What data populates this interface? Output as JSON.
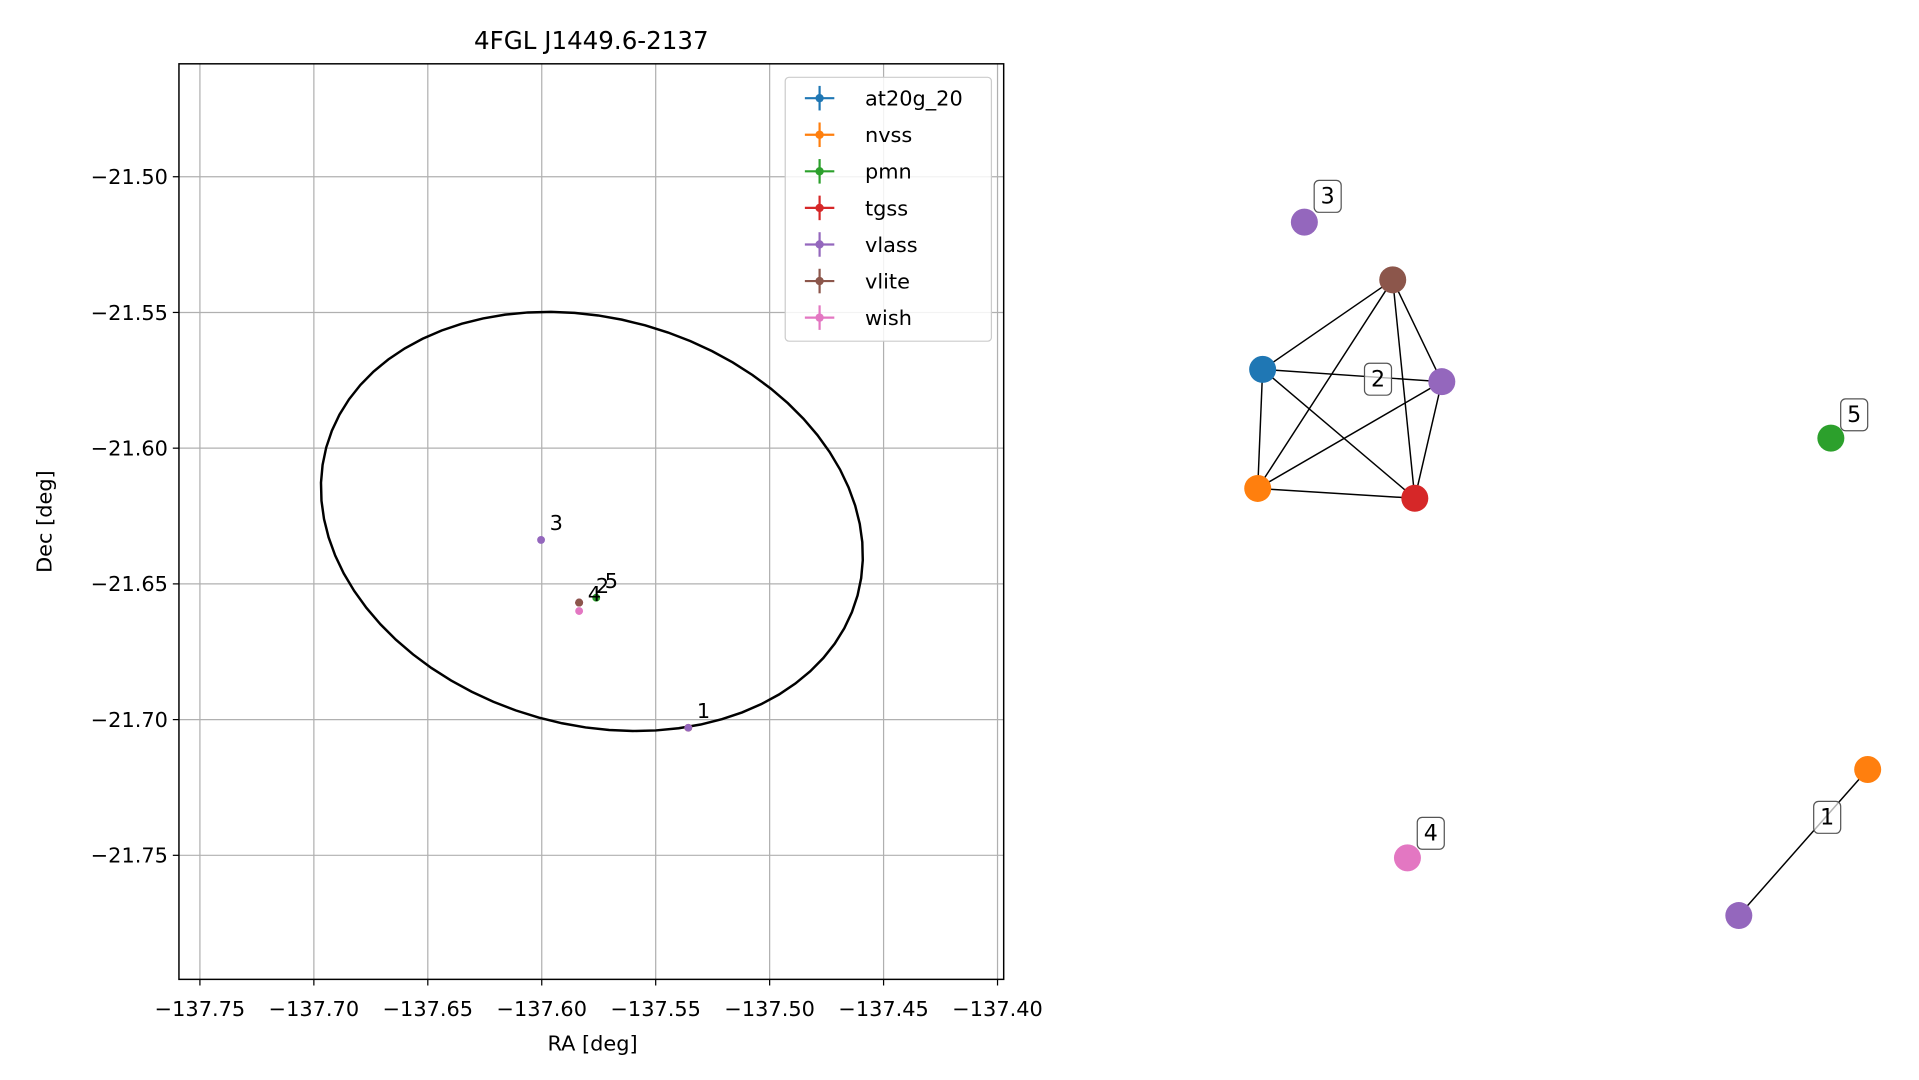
{
  "chart_data": {
    "type": "scatter",
    "title": "4FGL J1449.6-2137",
    "xlabel": "RA [deg]",
    "ylabel": "Dec [deg]",
    "xlim": [
      -137.7592,
      -137.3973
    ],
    "ylim": [
      -21.7957,
      -21.4584
    ],
    "xticks": [
      {
        "value": -137.75,
        "label": "−137.75"
      },
      {
        "value": -137.7,
        "label": "−137.70"
      },
      {
        "value": -137.65,
        "label": "−137.65"
      },
      {
        "value": -137.6,
        "label": "−137.60"
      },
      {
        "value": -137.55,
        "label": "−137.55"
      },
      {
        "value": -137.5,
        "label": "−137.50"
      },
      {
        "value": -137.45,
        "label": "−137.45"
      },
      {
        "value": -137.4,
        "label": "−137.40"
      }
    ],
    "yticks": [
      {
        "value": -21.5,
        "label": "−21.50"
      },
      {
        "value": -21.55,
        "label": "−21.55"
      },
      {
        "value": -21.6,
        "label": "−21.60"
      },
      {
        "value": -21.65,
        "label": "−21.65"
      },
      {
        "value": -21.7,
        "label": "−21.70"
      },
      {
        "value": -21.75,
        "label": "−21.75"
      }
    ],
    "grid": true,
    "legend": "upper right",
    "series": [
      {
        "name": "at20g_20",
        "color": "#1f77b4",
        "x": [
          -137.5836
        ],
        "y": [
          -21.6569
        ]
      },
      {
        "name": "nvss",
        "color": "#ff7f0e",
        "x": [
          -137.5836,
          -137.5357
        ],
        "y": [
          -21.6569,
          -21.703
        ]
      },
      {
        "name": "pmn",
        "color": "#2ca02c",
        "x": [
          -137.5761
        ],
        "y": [
          -21.6551
        ]
      },
      {
        "name": "tgss",
        "color": "#d62728",
        "x": [
          -137.5836
        ],
        "y": [
          -21.6569
        ]
      },
      {
        "name": "vlass",
        "color": "#9467bd",
        "x": [
          -137.5836,
          -137.6003,
          -137.5357
        ],
        "y": [
          -21.6569,
          -21.6338,
          -21.703
        ]
      },
      {
        "name": "vlite",
        "color": "#8c564b",
        "x": [
          -137.5836
        ],
        "y": [
          -21.6569
        ]
      },
      {
        "name": "wish",
        "color": "#e377c2",
        "x": [
          -137.5836
        ],
        "y": [
          -21.66
        ]
      }
    ],
    "annotations": [
      {
        "text": "1",
        "x": -137.5357,
        "y": -21.703
      },
      {
        "text": "2",
        "x": -137.58,
        "y": -21.6569
      },
      {
        "text": "3",
        "x": -137.6003,
        "y": -21.6338
      },
      {
        "text": "4",
        "x": -137.5836,
        "y": -21.66
      },
      {
        "text": "5",
        "x": -137.5761,
        "y": -21.6551
      }
    ],
    "ellipse": {
      "center": [
        -137.578,
        -21.627
      ],
      "width": 0.24,
      "height": 0.151,
      "angle": -10,
      "color": "#000000"
    }
  },
  "graph": {
    "groups": [
      {
        "label": "3",
        "nodes": [
          "#9467bd"
        ]
      },
      {
        "label": "2",
        "nodes": [
          "#8c564b",
          "#1f77b4",
          "#9467bd",
          "#ff7f0e",
          "#d62728"
        ]
      },
      {
        "label": "5",
        "nodes": [
          "#2ca02c"
        ]
      },
      {
        "label": "4",
        "nodes": [
          "#e377c2"
        ]
      },
      {
        "label": "1",
        "nodes": [
          "#ff7f0e",
          "#9467bd"
        ]
      }
    ]
  }
}
